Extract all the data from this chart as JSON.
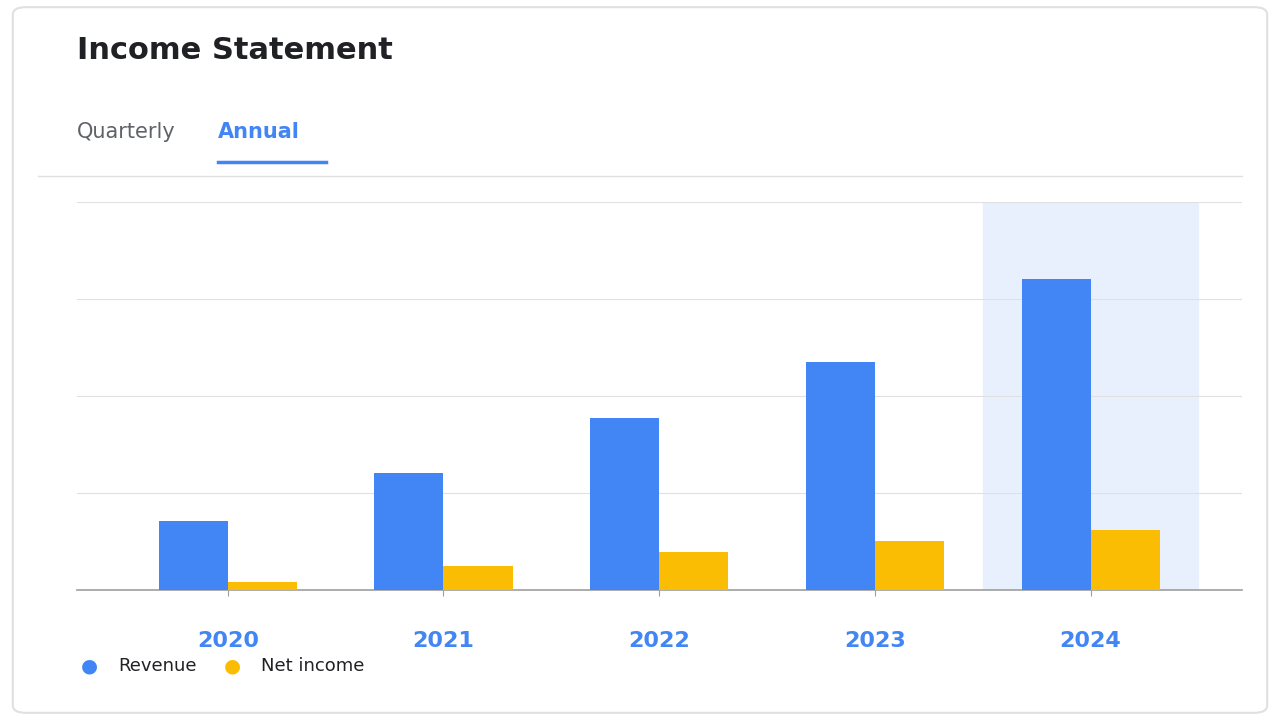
{
  "title": "Income Statement",
  "tab_quarterly": "Quarterly",
  "tab_annual": "Annual",
  "years": [
    "2020",
    "2021",
    "2022",
    "2023",
    "2024"
  ],
  "revenue": [
    1.0,
    1.7,
    2.5,
    3.3,
    4.5
  ],
  "net_income": [
    0.12,
    0.35,
    0.55,
    0.72,
    0.88
  ],
  "revenue_color": "#4285F4",
  "net_income_color": "#FBBC04",
  "bg_color": "#FFFFFF",
  "chart_bg": "#FFFFFF",
  "title_color": "#202124",
  "tab_inactive_color": "#5F6368",
  "tab_active_color": "#4285F4",
  "year_label_color": "#4285F4",
  "highlight_bg": "#E8F0FE",
  "grid_color": "#E0E0E0",
  "axis_color": "#9E9E9E",
  "legend_label_revenue": "Revenue",
  "legend_label_net_income": "Net income",
  "bar_width": 0.32,
  "highlighted_year": "2024"
}
